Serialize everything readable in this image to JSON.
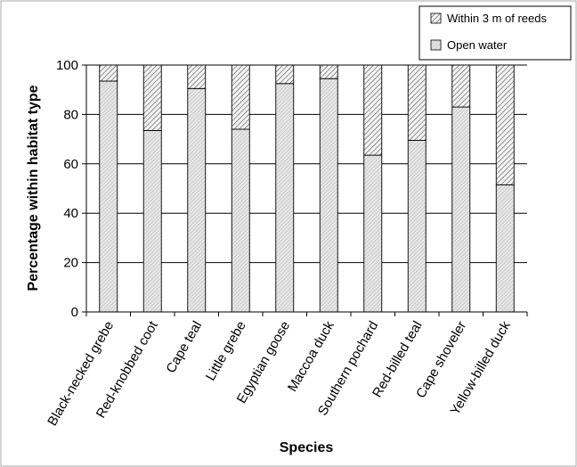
{
  "chart_data": {
    "type": "bar",
    "stacked": true,
    "xlabel": "Species",
    "ylabel": "Percentage within habitat type",
    "ylim": [
      0,
      100
    ],
    "yticks": [
      "0",
      "20",
      "40",
      "60",
      "80",
      "100"
    ],
    "grid": "horizontal",
    "legend_position": "top-right",
    "categories": [
      "Black-necked grebe",
      "Red-knobbed coot",
      "Cape teal",
      "Little grebe",
      "Egyptian goose",
      "Maccoa duck",
      "Southern pochard",
      "Red-billed teal",
      "Cape shoveler",
      "Yellow-billed duck"
    ],
    "series": [
      {
        "name": "Open water",
        "pattern": "fine-hatch",
        "values": [
          93.5,
          73.5,
          90.5,
          74,
          92.5,
          94.5,
          63.5,
          69.5,
          83,
          51.5
        ]
      },
      {
        "name": "Within 3 m of reeds",
        "pattern": "coarse-hatch",
        "values": [
          6.5,
          26.5,
          9.5,
          26,
          7.5,
          5.5,
          36.5,
          30.5,
          17,
          48.5
        ]
      }
    ],
    "legend_order": [
      "Within 3 m of reeds",
      "Open water"
    ]
  }
}
